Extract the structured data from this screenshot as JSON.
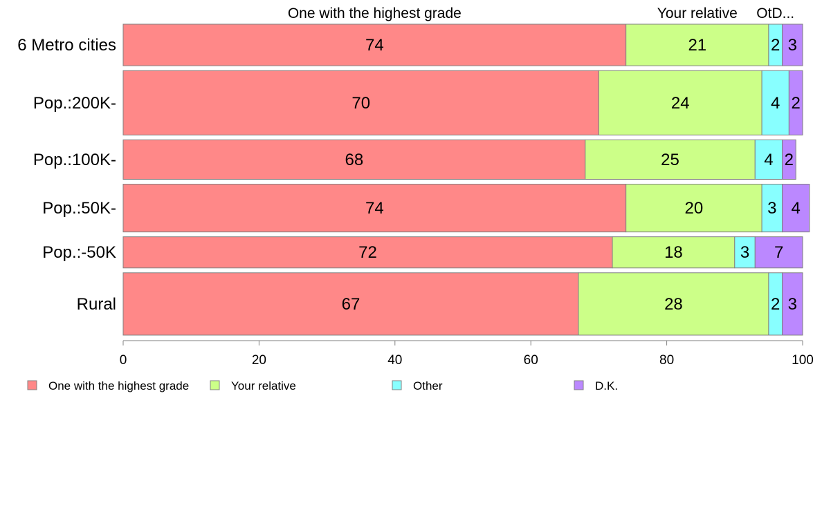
{
  "chart_data": {
    "type": "bar",
    "orientation": "horizontal",
    "stacked": true,
    "categories": [
      "6 Metro cities",
      "Pop.:200K-",
      "Pop.:100K-",
      "Pop.:50K-",
      "Pop.:-50K",
      "Rural"
    ],
    "category_weights": [
      1.0,
      1.55,
      0.95,
      1.15,
      0.75,
      1.5
    ],
    "series": [
      {
        "name": "One with the highest grade",
        "header": "One with the highest grade",
        "color": "#FF8888",
        "values": [
          74,
          70,
          68,
          74,
          72,
          67
        ]
      },
      {
        "name": "Your relative",
        "header": "Your relative",
        "color": "#CCFF88",
        "values": [
          21,
          24,
          25,
          20,
          18,
          28
        ]
      },
      {
        "name": "Other",
        "header": "OtD...",
        "color": "#88FFFF",
        "values": [
          2,
          4,
          4,
          3,
          3,
          2
        ]
      },
      {
        "name": "D.K.",
        "header": "",
        "color": "#BB88FF",
        "values": [
          3,
          2,
          2,
          4,
          7,
          3
        ]
      }
    ],
    "xlim": [
      0,
      100
    ],
    "xticks": [
      0,
      20,
      40,
      60,
      80,
      100
    ],
    "title": "",
    "xlabel": "",
    "ylabel": "",
    "grid": false,
    "legend_position": "bottom"
  }
}
